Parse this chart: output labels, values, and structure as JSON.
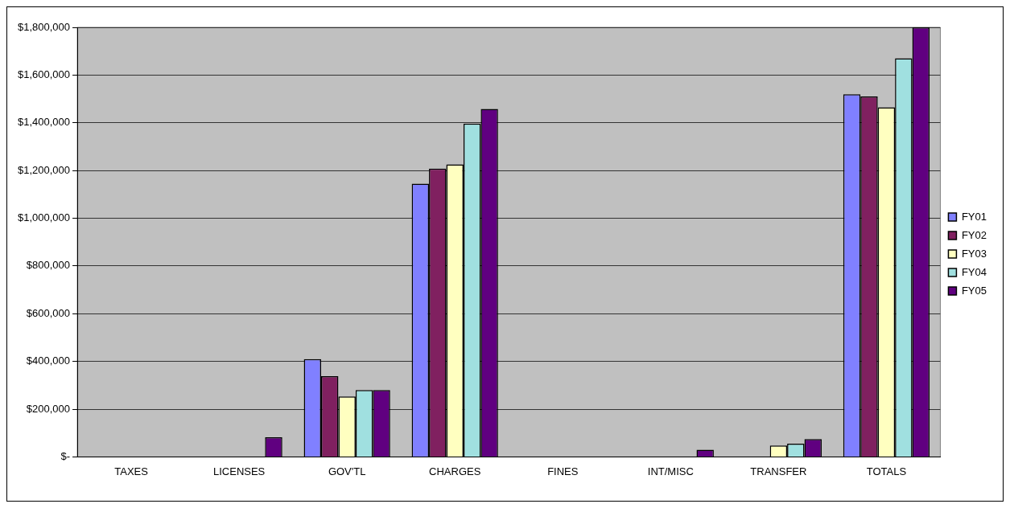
{
  "chart_data": {
    "type": "bar",
    "categories": [
      "TAXES",
      "LICENSES",
      "GOV'TL",
      "CHARGES",
      "FINES",
      "INT/MISC",
      "TRANSFER",
      "TOTALS"
    ],
    "series": [
      {
        "name": "FY01",
        "color": "#8080ff",
        "values": [
          0,
          0,
          410000,
          1145000,
          0,
          0,
          0,
          1520000
        ]
      },
      {
        "name": "FY02",
        "color": "#802060",
        "values": [
          0,
          0,
          338000,
          1208000,
          0,
          0,
          0,
          1510000
        ]
      },
      {
        "name": "FY03",
        "color": "#ffffc0",
        "values": [
          0,
          0,
          253000,
          1226000,
          0,
          0,
          48000,
          1465000
        ]
      },
      {
        "name": "FY04",
        "color": "#a0e0e0",
        "values": [
          0,
          0,
          280000,
          1397000,
          0,
          0,
          55000,
          1670000
        ]
      },
      {
        "name": "FY05",
        "color": "#600080",
        "values": [
          0,
          82000,
          280000,
          1458000,
          0,
          30000,
          75000,
          1800000
        ]
      }
    ],
    "ylim": [
      0,
      1800000
    ],
    "yticks": [
      {
        "value": 0,
        "label": "$-"
      },
      {
        "value": 200000,
        "label": "$200,000"
      },
      {
        "value": 400000,
        "label": "$400,000"
      },
      {
        "value": 600000,
        "label": "$600,000"
      },
      {
        "value": 800000,
        "label": "$800,000"
      },
      {
        "value": 1000000,
        "label": "$1,000,000"
      },
      {
        "value": 1200000,
        "label": "$1,200,000"
      },
      {
        "value": 1400000,
        "label": "$1,400,000"
      },
      {
        "value": 1600000,
        "label": "$1,600,000"
      },
      {
        "value": 1800000,
        "label": "$1,800,000"
      }
    ],
    "grid": "y",
    "legend": "right"
  }
}
